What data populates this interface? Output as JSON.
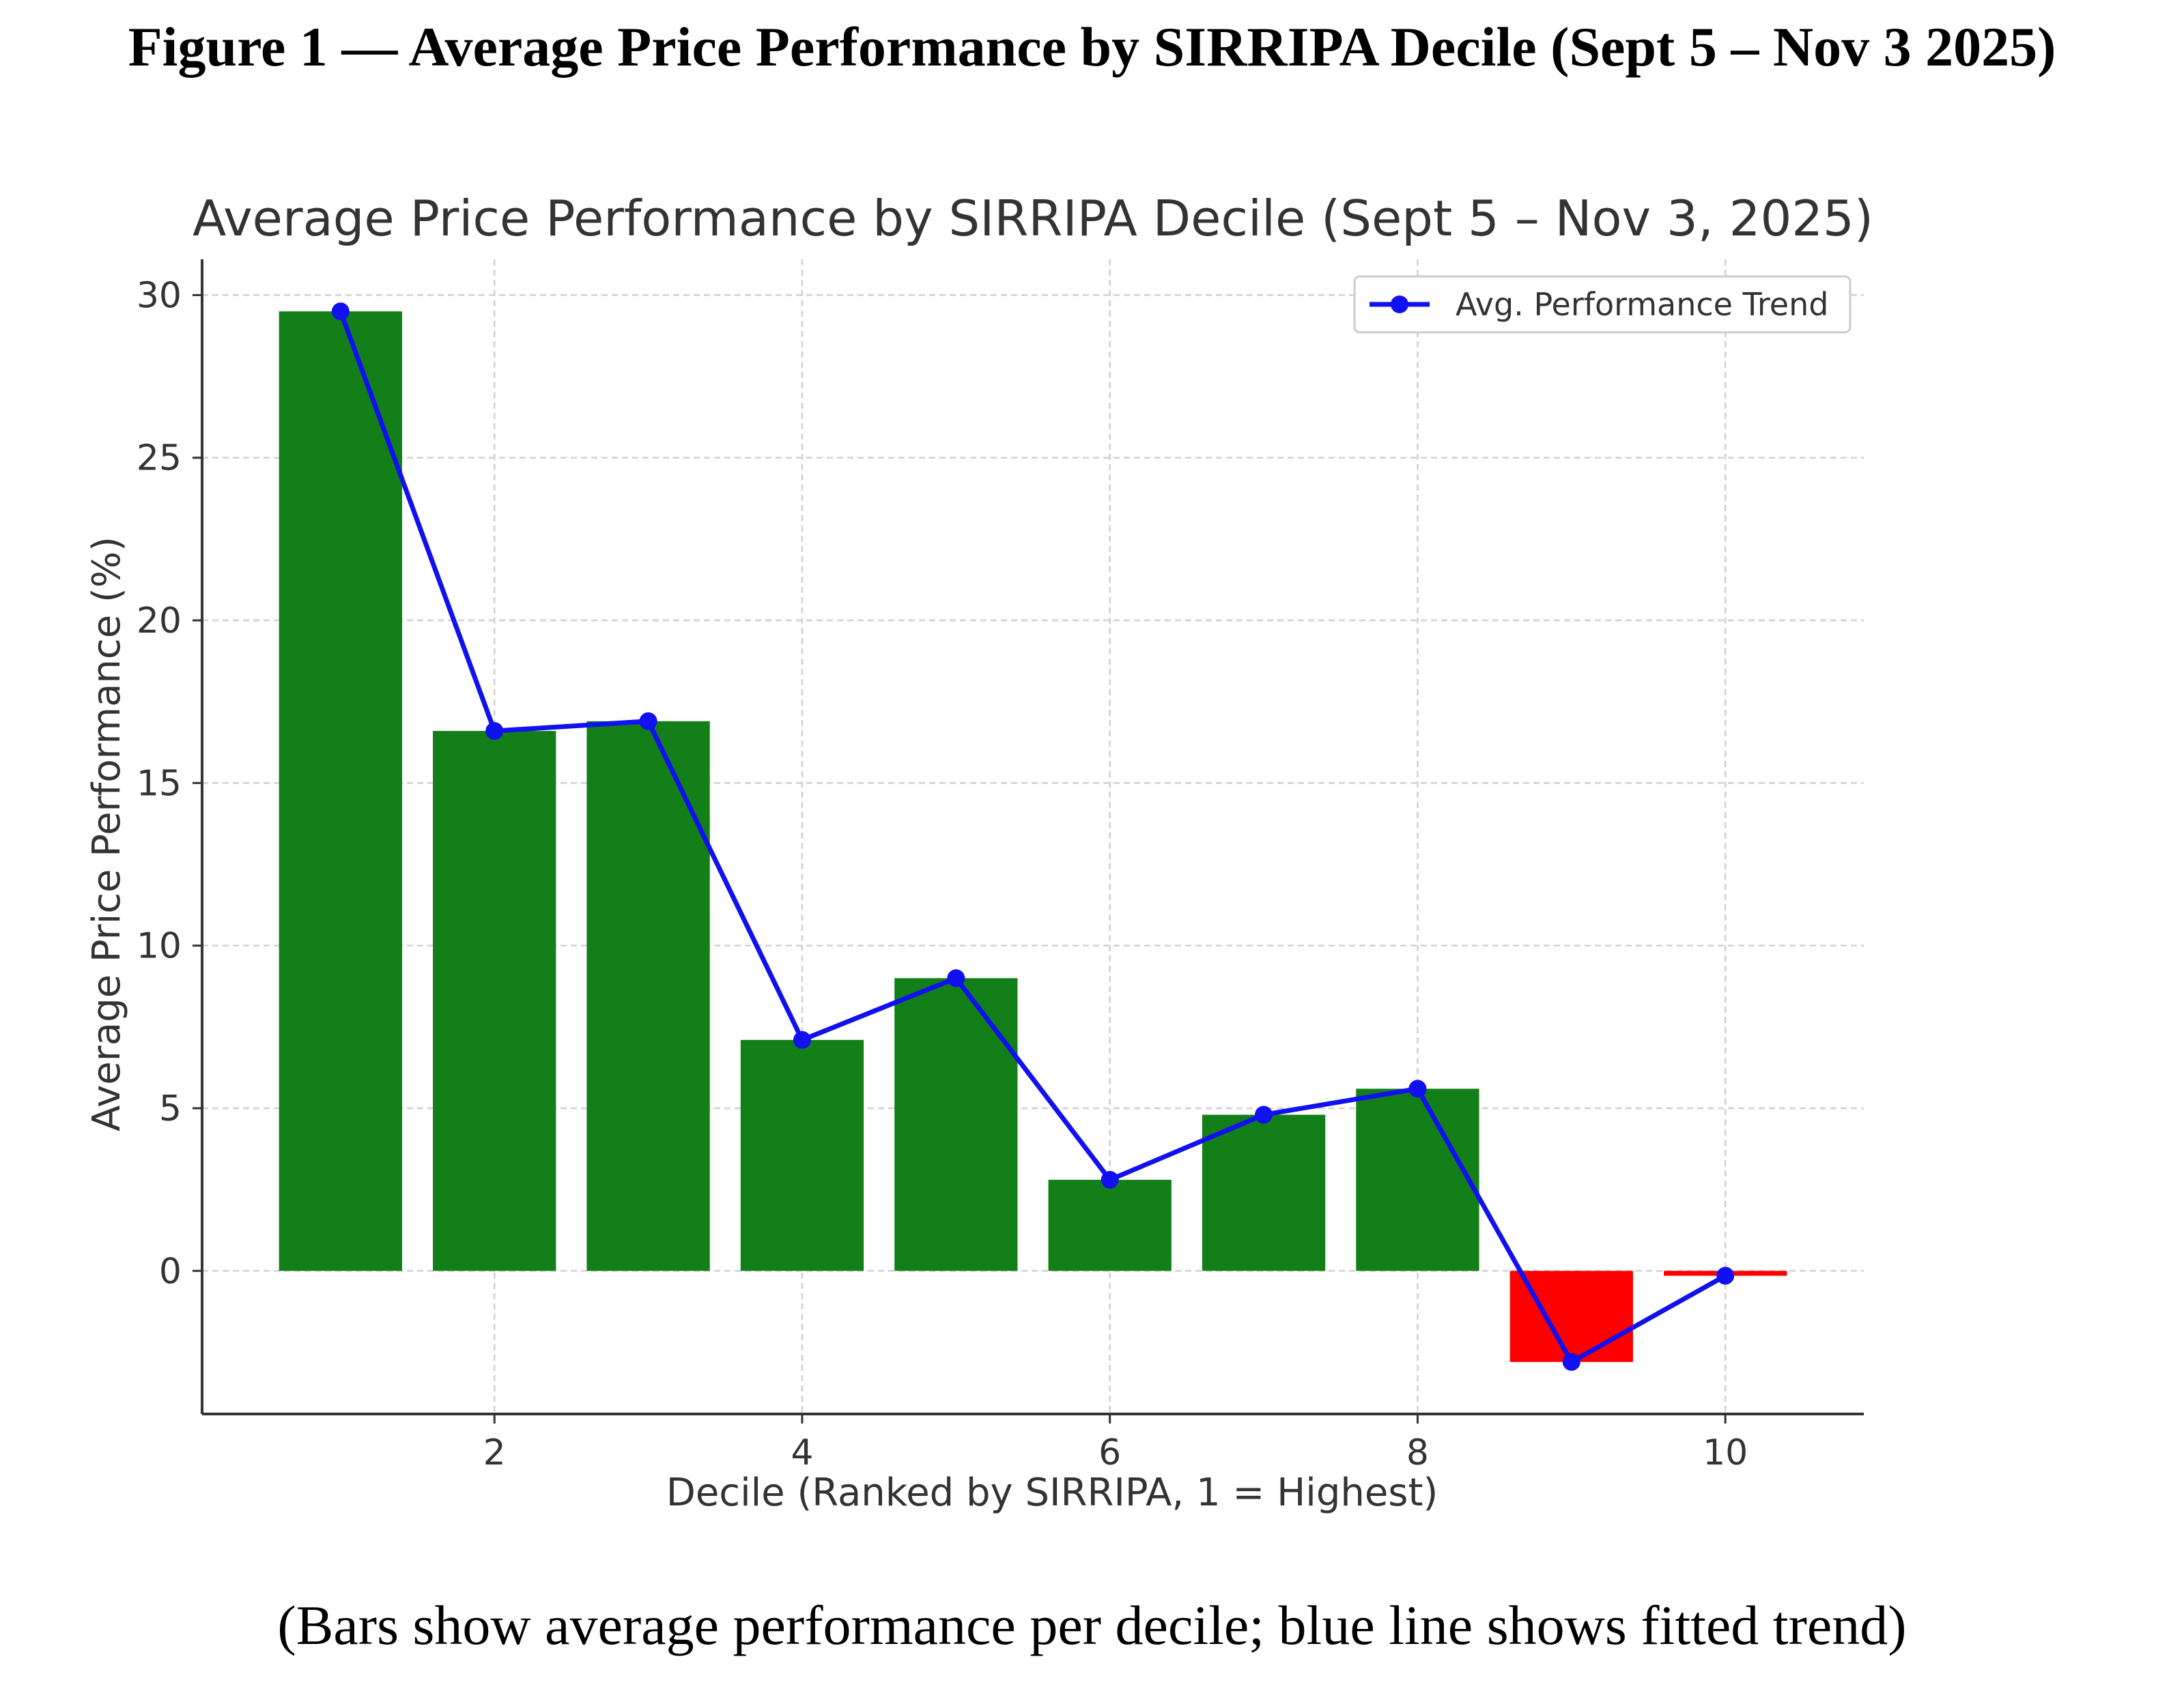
{
  "figure": {
    "title": "Figure 1 — Average Price Performance by SIRRIPA Decile (Sept 5 – Nov 3 2025)",
    "caption": "(Bars show average performance per decile; blue line shows fitted trend)"
  },
  "chart_data": {
    "type": "bar",
    "title": "Average Price Performance by SIRRIPA Decile (Sept 5 – Nov 3, 2025)",
    "xlabel": "Decile (Ranked by SIRRIPA, 1 = Highest)",
    "ylabel": "Average Price Performance (%)",
    "categories": [
      1,
      2,
      3,
      4,
      5,
      6,
      7,
      8,
      9,
      10
    ],
    "values": [
      29.5,
      16.6,
      16.9,
      7.1,
      9.0,
      2.8,
      4.8,
      5.6,
      -2.8,
      -0.15
    ],
    "xticks": [
      "2",
      "4",
      "6",
      "8",
      "10"
    ],
    "xtick_values": [
      2,
      4,
      6,
      8,
      10
    ],
    "yticks": [
      "0",
      "5",
      "10",
      "15",
      "20",
      "25",
      "30"
    ],
    "ytick_values": [
      0,
      5,
      10,
      15,
      20,
      25,
      30
    ],
    "xlim": [
      0.1,
      10.9
    ],
    "ylim": [
      -4.4,
      31.1
    ],
    "grid": true,
    "legend": {
      "placement": "top-right",
      "entries": [
        "Avg. Performance Trend"
      ]
    },
    "series": [
      {
        "name": "Avg. Performance Trend",
        "type": "line",
        "marker": "circle",
        "values": [
          29.5,
          16.6,
          16.9,
          7.1,
          9.0,
          2.8,
          4.8,
          5.6,
          -2.8,
          -0.15
        ]
      }
    ],
    "colors": {
      "positive_bar": "#127f18",
      "negative_bar": "#ff0000",
      "trend_line": "#1010f0",
      "axis": "#333333",
      "grid": "#d0d0d0",
      "text": "#333333"
    }
  }
}
